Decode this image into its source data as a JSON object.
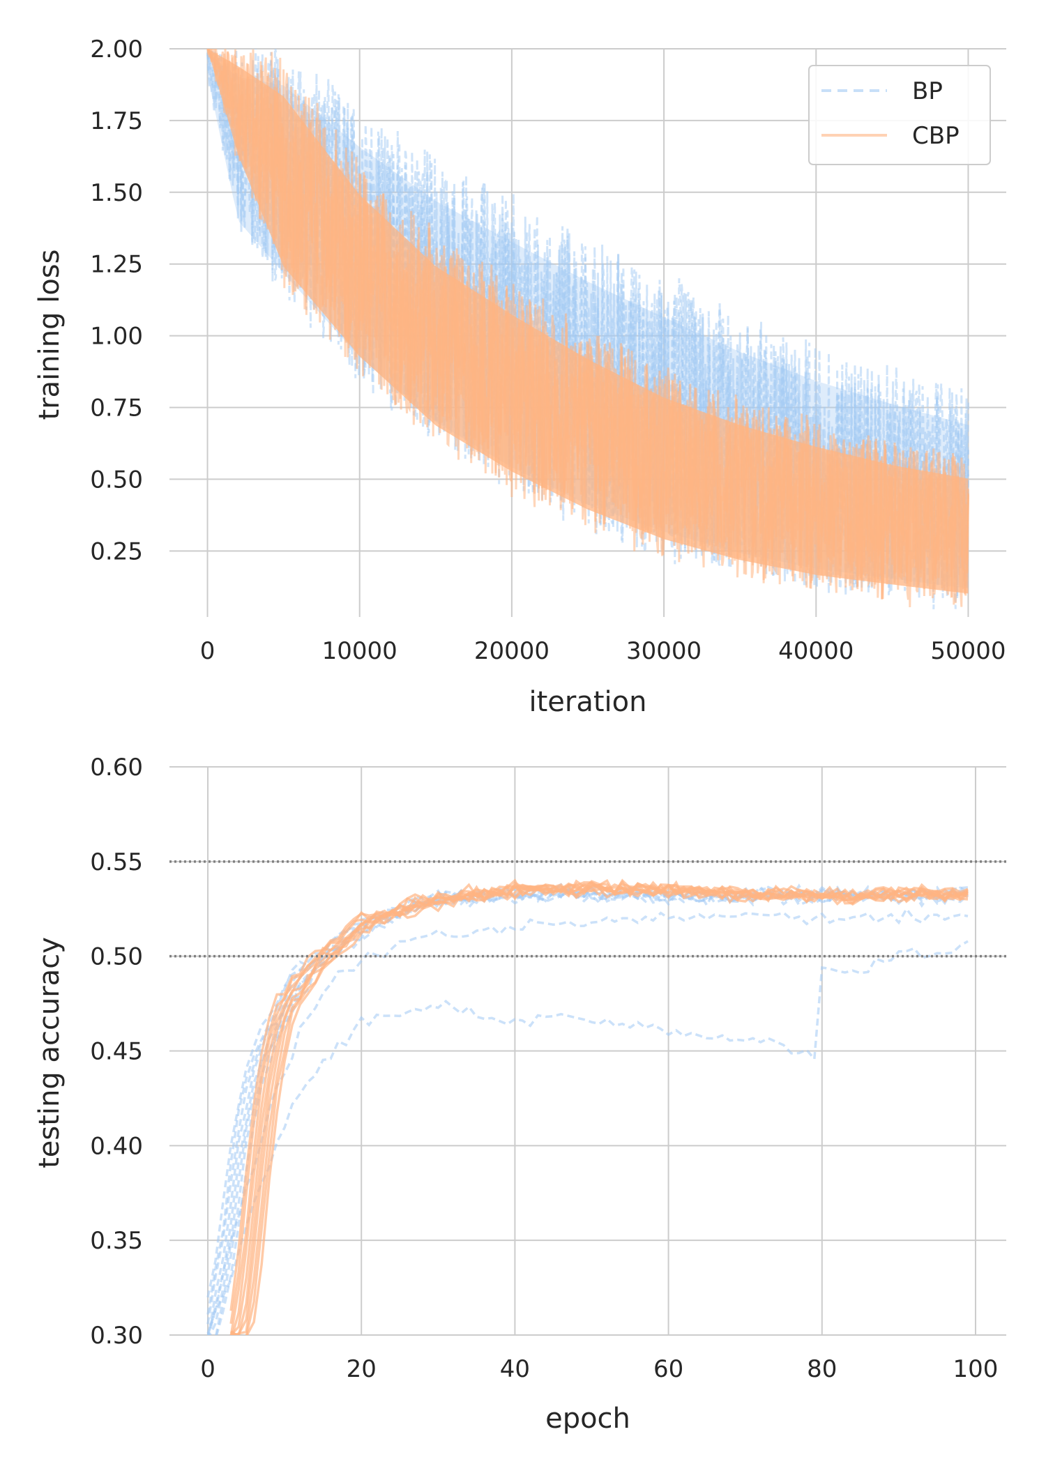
{
  "chart_data": [
    {
      "type": "line",
      "xlabel": "iteration",
      "ylabel": "training loss",
      "xlim": [
        -2500,
        52500
      ],
      "ylim": [
        0.02,
        2.0
      ],
      "xticks": [
        0,
        10000,
        20000,
        30000,
        40000,
        50000
      ],
      "xtick_labels": [
        "0",
        "10000",
        "20000",
        "30000",
        "40000",
        "50000"
      ],
      "yticks": [
        0.25,
        0.5,
        0.75,
        1.0,
        1.25,
        1.5,
        1.75,
        2.0
      ],
      "ytick_labels": [
        "0.25",
        "0.50",
        "0.75",
        "1.00",
        "1.25",
        "1.50",
        "1.75",
        "2.00"
      ],
      "grid": true,
      "legend": {
        "placement": "top-right",
        "entries": [
          {
            "name": "BP",
            "color": "#a1c9f4",
            "style": "dashed"
          },
          {
            "name": "CBP",
            "color": "#ffb482",
            "style": "solid"
          }
        ]
      },
      "series": [
        {
          "name": "BP",
          "color": "#a1c9f4",
          "style": "dashed",
          "runs": 10,
          "x": [
            0,
            2000,
            5000,
            10000,
            15000,
            20000,
            25000,
            30000,
            35000,
            40000,
            45000,
            50000
          ],
          "low": [
            1.9,
            1.35,
            1.15,
            0.85,
            0.62,
            0.46,
            0.33,
            0.24,
            0.17,
            0.12,
            0.09,
            0.06
          ],
          "high": [
            2.0,
            2.0,
            2.0,
            1.8,
            1.62,
            1.48,
            1.34,
            1.21,
            1.08,
            0.97,
            0.88,
            0.8
          ]
        },
        {
          "name": "CBP",
          "color": "#ffb482",
          "style": "solid",
          "runs": 10,
          "x": [
            0,
            2000,
            5000,
            10000,
            15000,
            20000,
            25000,
            30000,
            35000,
            40000,
            45000,
            50000
          ],
          "low": [
            2.0,
            1.6,
            1.18,
            0.87,
            0.63,
            0.47,
            0.34,
            0.24,
            0.17,
            0.12,
            0.09,
            0.06
          ],
          "high": [
            2.0,
            2.0,
            1.95,
            1.6,
            1.35,
            1.18,
            1.02,
            0.88,
            0.78,
            0.7,
            0.63,
            0.58
          ]
        }
      ]
    },
    {
      "type": "line",
      "xlabel": "epoch",
      "ylabel": "testing accuracy",
      "xlim": [
        -5,
        104
      ],
      "ylim": [
        0.3,
        0.6
      ],
      "xticks": [
        0,
        20,
        40,
        60,
        80,
        100
      ],
      "xtick_labels": [
        "0",
        "20",
        "40",
        "60",
        "80",
        "100"
      ],
      "yticks": [
        0.3,
        0.35,
        0.4,
        0.45,
        0.5,
        0.55,
        0.6
      ],
      "ytick_labels": [
        "0.30",
        "0.35",
        "0.40",
        "0.45",
        "0.50",
        "0.55",
        "0.60"
      ],
      "grid": true,
      "reference_lines": [
        0.5,
        0.55
      ],
      "series": [
        {
          "name": "BP",
          "color": "#a1c9f4",
          "style": "dashed",
          "runs": 10,
          "x": [
            0,
            2,
            4,
            6,
            8,
            10,
            12,
            15,
            20,
            25,
            30,
            40,
            50,
            60,
            70,
            80,
            90,
            99
          ],
          "mean": [
            0.3,
            0.34,
            0.4,
            0.44,
            0.46,
            0.475,
            0.49,
            0.5,
            0.515,
            0.525,
            0.53,
            0.533,
            0.533,
            0.532,
            0.532,
            0.532,
            0.532,
            0.533
          ],
          "outlier_runs": [
            {
              "x": [
                0,
                3,
                6,
                9,
                12,
                15,
                18,
                20,
                25,
                30,
                35,
                40,
                45,
                50,
                55,
                60,
                65,
                70,
                75,
                79,
                80,
                85,
                90,
                95,
                99
              ],
              "y": [
                0.3,
                0.33,
                0.37,
                0.4,
                0.43,
                0.445,
                0.455,
                0.465,
                0.47,
                0.475,
                0.47,
                0.465,
                0.468,
                0.466,
                0.464,
                0.462,
                0.458,
                0.455,
                0.455,
                0.447,
                0.495,
                0.492,
                0.5,
                0.502,
                0.505
              ]
            },
            {
              "x": [
                0,
                3,
                6,
                9,
                12,
                15,
                20,
                25,
                30,
                40,
                50,
                60,
                70,
                80,
                90,
                99
              ],
              "y": [
                0.3,
                0.35,
                0.39,
                0.43,
                0.46,
                0.48,
                0.5,
                0.505,
                0.51,
                0.515,
                0.518,
                0.52,
                0.522,
                0.52,
                0.522,
                0.52
              ]
            }
          ]
        },
        {
          "name": "CBP",
          "color": "#ffb482",
          "style": "solid",
          "runs": 10,
          "x": [
            3,
            4,
            5,
            6,
            7,
            8,
            9,
            10,
            12,
            15,
            18,
            20,
            25,
            30,
            35,
            40,
            50,
            60,
            70,
            80,
            90,
            99
          ],
          "mean": [
            0.3,
            0.3,
            0.33,
            0.37,
            0.41,
            0.44,
            0.46,
            0.475,
            0.485,
            0.5,
            0.51,
            0.518,
            0.525,
            0.53,
            0.533,
            0.535,
            0.536,
            0.535,
            0.533,
            0.532,
            0.533,
            0.533
          ]
        }
      ]
    }
  ]
}
